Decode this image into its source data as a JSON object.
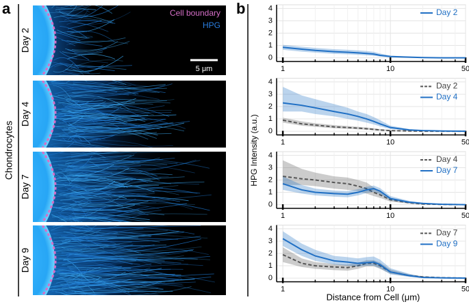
{
  "panel_a": {
    "label": "a",
    "ylabel": "Chondrocytes",
    "rows": [
      "Day 2",
      "Day 4",
      "Day 7",
      "Day 9"
    ],
    "legend": [
      "Cell boundary",
      "HPG"
    ],
    "scale_bar": "5 μm"
  },
  "panel_b": {
    "label": "b",
    "ylabel": "HPG Intensity (a.u.)",
    "xlabel": "Distance from Cell (μm)"
  },
  "chart_data": [
    {
      "type": "line",
      "xscale": "log",
      "grid": true,
      "legend": "upper right",
      "xlim": [
        0.875,
        50
      ],
      "ylim": [
        -0.3,
        4.3
      ],
      "xticks": [
        1,
        10,
        50
      ],
      "minor_xticks": [
        2,
        3,
        4,
        5,
        6,
        7,
        8,
        9,
        20,
        30,
        40
      ],
      "yticks": [
        0,
        1,
        2,
        3,
        4
      ],
      "x": [
        1,
        1.5,
        2,
        3,
        4,
        5,
        6,
        7,
        8,
        10,
        15,
        20,
        30,
        50
      ],
      "series": [
        {
          "name": "Day 2",
          "color": "#1f6fc4",
          "linestyle": "solid",
          "values": [
            0.85,
            0.7,
            0.6,
            0.5,
            0.45,
            0.4,
            0.35,
            0.3,
            0.2,
            0.1,
            0.05,
            0.02,
            0,
            0
          ],
          "lower": [
            0.65,
            0.5,
            0.42,
            0.32,
            0.28,
            0.24,
            0.2,
            0.16,
            0.1,
            0.04,
            0.01,
            0,
            0,
            0
          ],
          "upper": [
            1.05,
            0.9,
            0.8,
            0.7,
            0.65,
            0.6,
            0.55,
            0.48,
            0.35,
            0.18,
            0.09,
            0.04,
            0.01,
            0
          ]
        }
      ]
    },
    {
      "type": "line",
      "xscale": "log",
      "grid": true,
      "legend": "upper right",
      "xlim": [
        0.875,
        50
      ],
      "ylim": [
        -0.3,
        4.3
      ],
      "xticks": [
        1,
        10,
        50
      ],
      "minor_xticks": [
        2,
        3,
        4,
        5,
        6,
        7,
        8,
        9,
        20,
        30,
        40
      ],
      "yticks": [
        0,
        1,
        2,
        3,
        4
      ],
      "x": [
        1,
        1.5,
        2,
        3,
        4,
        5,
        6,
        7,
        8,
        10,
        15,
        20,
        30,
        50
      ],
      "series": [
        {
          "name": "Day 2",
          "color": "#555555",
          "linestyle": "dashed",
          "values": [
            0.9,
            0.6,
            0.5,
            0.35,
            0.3,
            0.25,
            0.2,
            0.15,
            0.1,
            0.05,
            0.02,
            0,
            0,
            0
          ],
          "lower": [
            0.7,
            0.45,
            0.36,
            0.24,
            0.2,
            0.16,
            0.12,
            0.08,
            0.05,
            0.02,
            0,
            0,
            0,
            0
          ],
          "upper": [
            1.1,
            0.8,
            0.65,
            0.5,
            0.42,
            0.36,
            0.3,
            0.24,
            0.17,
            0.1,
            0.05,
            0.02,
            0,
            0
          ]
        },
        {
          "name": "Day 4",
          "color": "#1f6fc4",
          "linestyle": "solid",
          "values": [
            2.3,
            2.1,
            1.9,
            1.6,
            1.4,
            1.2,
            1.0,
            0.8,
            0.6,
            0.3,
            0.1,
            0.05,
            0.02,
            0
          ],
          "lower": [
            1.6,
            1.6,
            1.4,
            1.2,
            1.0,
            0.85,
            0.7,
            0.55,
            0.4,
            0.18,
            0.05,
            0.02,
            0,
            0
          ],
          "upper": [
            3.6,
            2.9,
            2.6,
            2.2,
            1.9,
            1.6,
            1.4,
            1.15,
            0.9,
            0.45,
            0.18,
            0.09,
            0.04,
            0.01
          ]
        }
      ]
    },
    {
      "type": "line",
      "xscale": "log",
      "grid": true,
      "legend": "upper right",
      "xlim": [
        0.875,
        50
      ],
      "ylim": [
        -0.3,
        4.3
      ],
      "xticks": [
        1,
        10,
        50
      ],
      "minor_xticks": [
        2,
        3,
        4,
        5,
        6,
        7,
        8,
        9,
        20,
        30,
        40
      ],
      "yticks": [
        0,
        1,
        2,
        3,
        4
      ],
      "x": [
        1,
        1.5,
        2,
        3,
        4,
        5,
        6,
        7,
        8,
        10,
        15,
        20,
        30,
        50
      ],
      "series": [
        {
          "name": "Day 4",
          "color": "#555555",
          "linestyle": "dashed",
          "values": [
            2.3,
            2.1,
            2.0,
            1.8,
            1.7,
            1.5,
            1.3,
            1.0,
            0.8,
            0.4,
            0.15,
            0.05,
            0.02,
            0
          ],
          "lower": [
            1.6,
            1.6,
            1.5,
            1.3,
            1.2,
            1.1,
            0.9,
            0.7,
            0.55,
            0.25,
            0.08,
            0.02,
            0,
            0
          ],
          "upper": [
            3.6,
            2.9,
            2.6,
            2.3,
            2.2,
            2.0,
            1.8,
            1.4,
            1.1,
            0.55,
            0.22,
            0.09,
            0.04,
            0.01
          ]
        },
        {
          "name": "Day 7",
          "color": "#1f6fc4",
          "linestyle": "solid",
          "values": [
            1.7,
            1.2,
            1.0,
            0.9,
            0.85,
            1.0,
            1.2,
            1.3,
            1.1,
            0.5,
            0.2,
            0.1,
            0.03,
            0
          ],
          "lower": [
            1.2,
            0.9,
            0.75,
            0.65,
            0.6,
            0.75,
            0.95,
            1.05,
            0.85,
            0.35,
            0.12,
            0.05,
            0.01,
            0
          ],
          "upper": [
            2.3,
            1.6,
            1.3,
            1.15,
            1.1,
            1.25,
            1.45,
            1.55,
            1.35,
            0.7,
            0.3,
            0.15,
            0.06,
            0.01
          ]
        }
      ]
    },
    {
      "type": "line",
      "xscale": "log",
      "grid": true,
      "legend": "upper right",
      "xlim": [
        0.875,
        50
      ],
      "ylim": [
        -0.3,
        4.3
      ],
      "xticks": [
        1,
        10,
        50
      ],
      "minor_xticks": [
        2,
        3,
        4,
        5,
        6,
        7,
        8,
        9,
        20,
        30,
        40
      ],
      "yticks": [
        0,
        1,
        2,
        3,
        4
      ],
      "x": [
        1,
        1.5,
        2,
        3,
        4,
        5,
        6,
        7,
        8,
        10,
        15,
        20,
        30,
        50
      ],
      "series": [
        {
          "name": "Day 7",
          "color": "#555555",
          "linestyle": "dashed",
          "values": [
            1.9,
            1.2,
            1.0,
            0.9,
            0.85,
            1.0,
            1.2,
            1.2,
            1.0,
            0.5,
            0.2,
            0.1,
            0.03,
            0
          ],
          "lower": [
            1.3,
            0.9,
            0.75,
            0.65,
            0.6,
            0.75,
            0.95,
            0.95,
            0.75,
            0.35,
            0.12,
            0.05,
            0.01,
            0
          ],
          "upper": [
            2.5,
            1.6,
            1.3,
            1.15,
            1.1,
            1.25,
            1.45,
            1.45,
            1.25,
            0.7,
            0.3,
            0.15,
            0.06,
            0.01
          ]
        },
        {
          "name": "Day 9",
          "color": "#1f6fc4",
          "linestyle": "solid",
          "values": [
            3.2,
            2.3,
            1.8,
            1.4,
            1.3,
            1.2,
            1.25,
            1.3,
            1.1,
            0.5,
            0.2,
            0.05,
            0.02,
            0
          ],
          "lower": [
            2.6,
            1.8,
            1.4,
            1.1,
            1.0,
            0.95,
            1.0,
            1.0,
            0.8,
            0.3,
            0.1,
            0.02,
            0,
            0
          ],
          "upper": [
            3.8,
            2.8,
            2.3,
            1.8,
            1.7,
            1.6,
            1.7,
            1.75,
            1.5,
            0.8,
            0.35,
            0.1,
            0.04,
            0.01
          ]
        }
      ]
    }
  ]
}
